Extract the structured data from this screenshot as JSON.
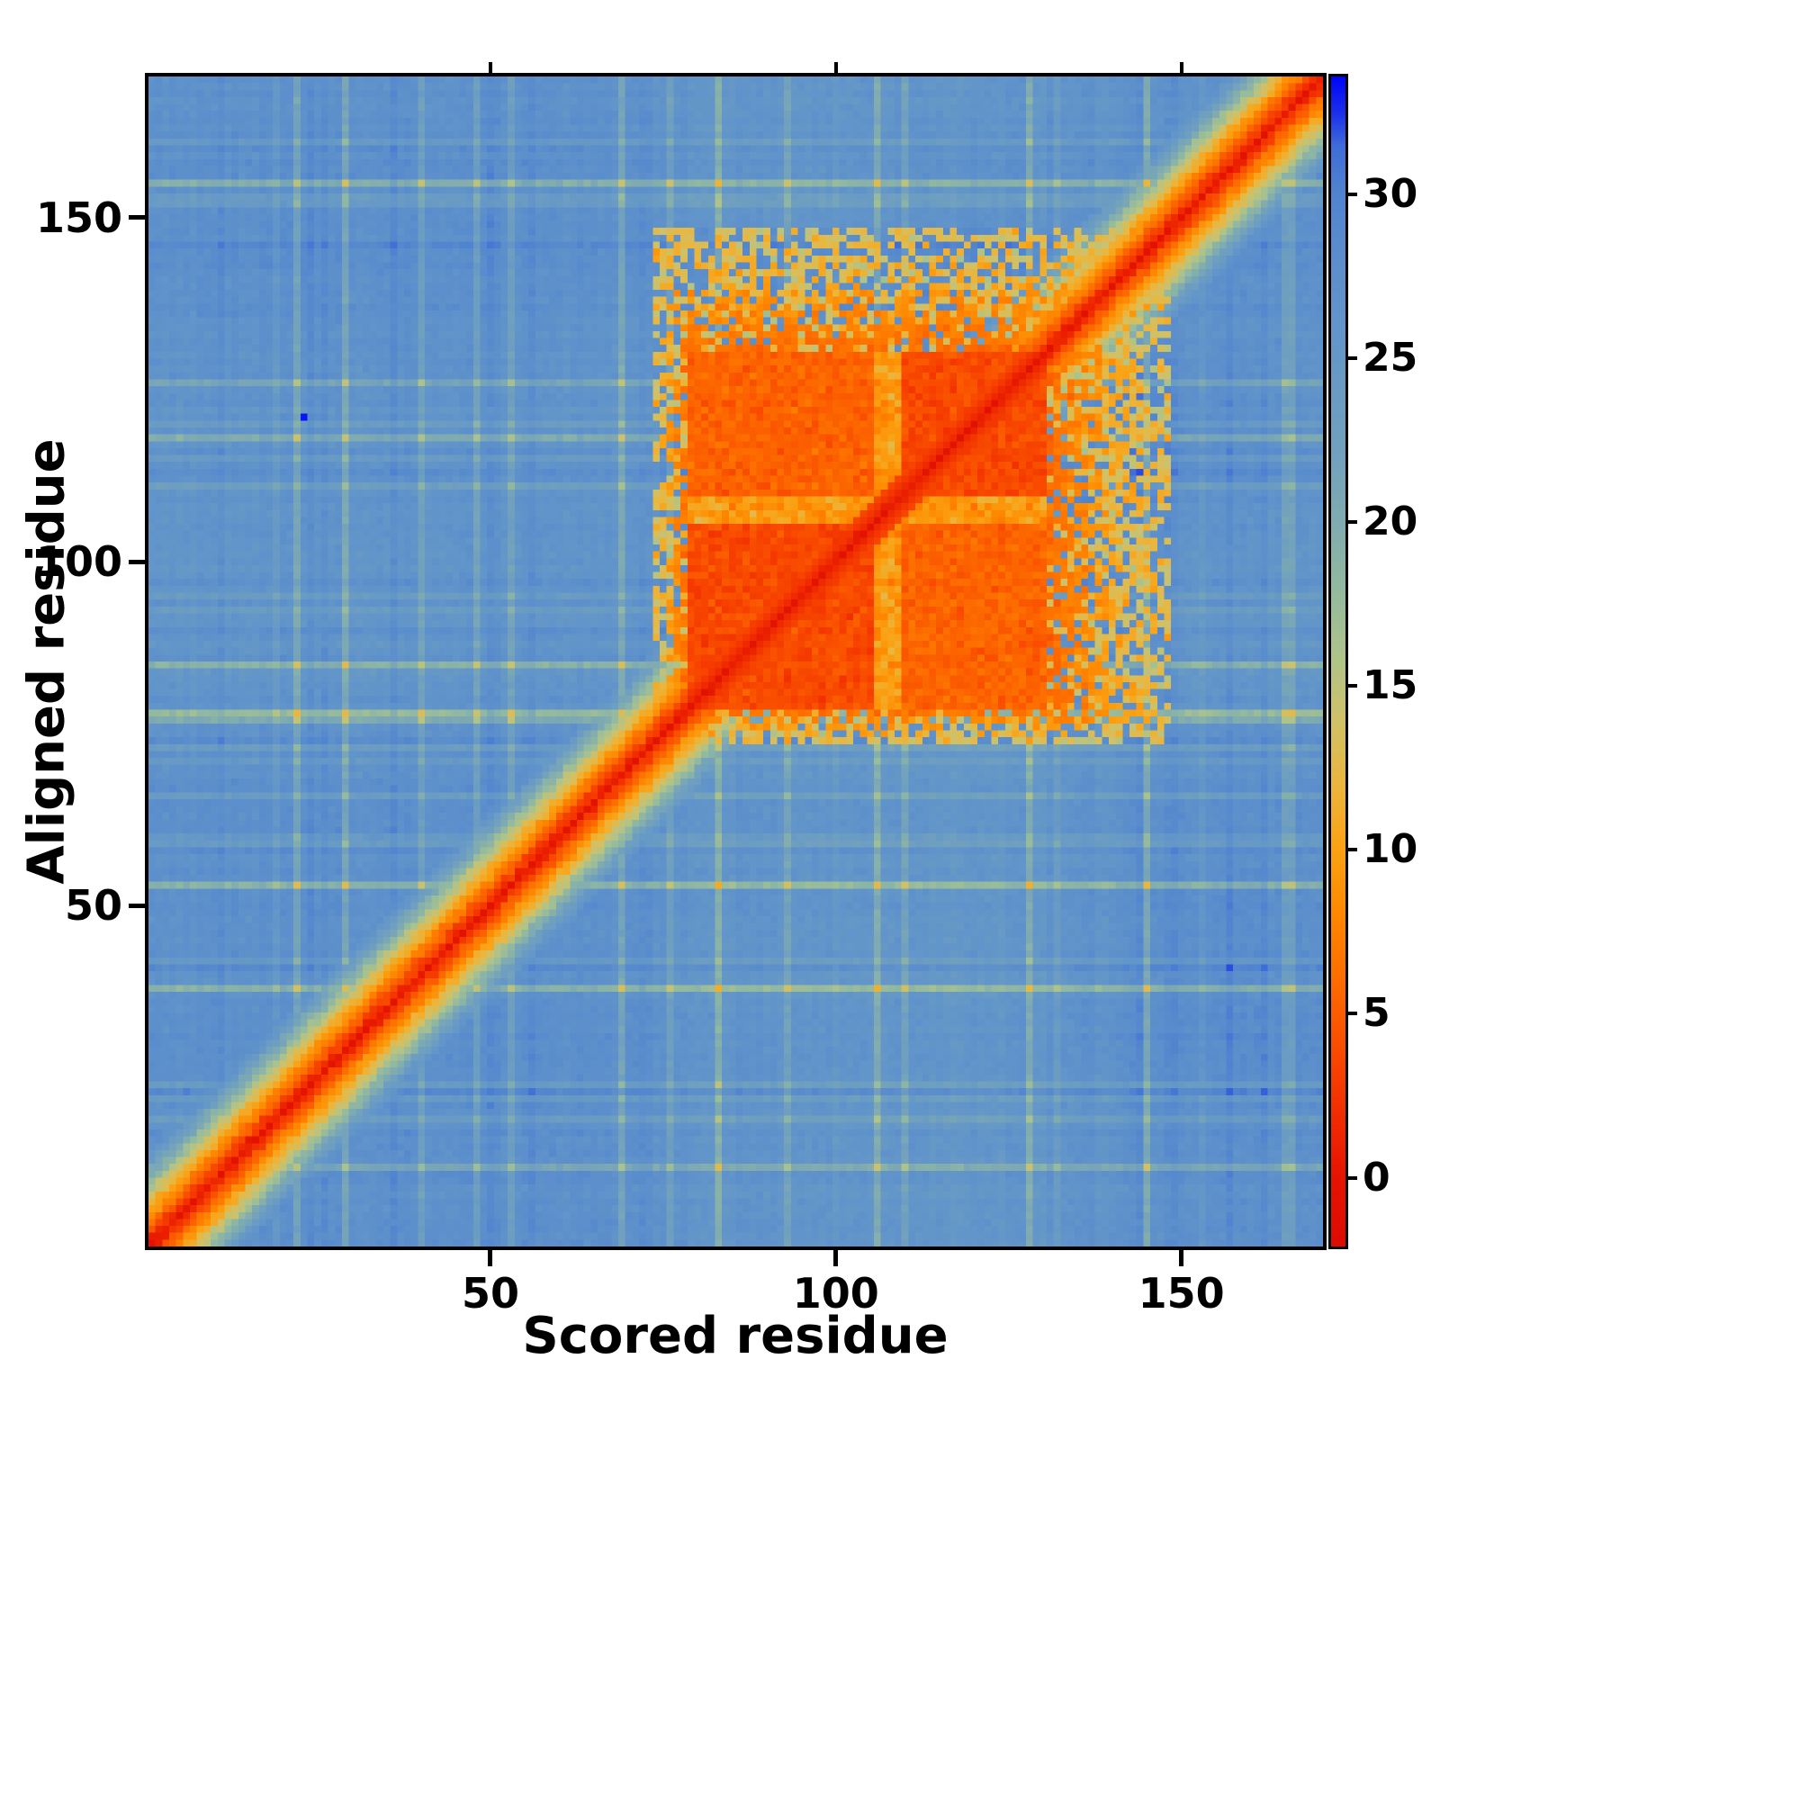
{
  "chart_data": {
    "type": "heatmap",
    "xlabel": "Scored residue",
    "ylabel": "Aligned residue",
    "x_range": [
      1,
      170
    ],
    "y_range": [
      1,
      170
    ],
    "x_ticks": [
      50,
      100,
      150
    ],
    "y_ticks": [
      50,
      100,
      150
    ],
    "grid": false,
    "legend": "colorbar-right",
    "colorbar": {
      "position": "right",
      "ticks": [
        0,
        5,
        10,
        15,
        20,
        25,
        30
      ],
      "vmin": -2.1,
      "vmax": 33.6,
      "colormap": [
        [
          -2.1,
          "#dd0b00"
        ],
        [
          0,
          "#e51400"
        ],
        [
          2,
          "#f22e00"
        ],
        [
          4,
          "#f94d00"
        ],
        [
          6,
          "#fd6c00"
        ],
        [
          8,
          "#fe8700"
        ],
        [
          10,
          "#fba113"
        ],
        [
          12,
          "#eab63e"
        ],
        [
          14,
          "#cfc169"
        ],
        [
          16,
          "#adc38b"
        ],
        [
          18,
          "#92b9a0"
        ],
        [
          20,
          "#80abb0"
        ],
        [
          22,
          "#72a1bd"
        ],
        [
          24,
          "#699bc4"
        ],
        [
          26,
          "#6295c9"
        ],
        [
          28,
          "#5b8ecb"
        ],
        [
          30,
          "#5184cf"
        ],
        [
          31.5,
          "#3e6cd8"
        ],
        [
          32.5,
          "#1c2fe9"
        ],
        [
          33.6,
          "#0006fa"
        ]
      ]
    },
    "matrix_model": {
      "size": 170,
      "seed": 1337,
      "background": 27.5,
      "diagonal": {
        "value_per_residue": 2.0
      },
      "block": {
        "core_start": 79,
        "core_end": 130,
        "ext_end": 149,
        "fringe": 5,
        "core_value": 3.8,
        "seam": [
          106,
          109
        ]
      },
      "outlier": {
        "x": 23,
        "y": 121,
        "value": 33.2
      },
      "blue_blobs": [
        {
          "x": 150,
          "y": 120,
          "sx": 16,
          "sy": 11,
          "amp": 1.6
        },
        {
          "x": 120,
          "y": 150,
          "sx": 11,
          "sy": 16,
          "amp": 1.1
        },
        {
          "x": 30,
          "y": 128,
          "sx": 22,
          "sy": 16,
          "amp": 0.7
        },
        {
          "x": 156,
          "y": 38,
          "sx": 14,
          "sy": 14,
          "amp": 0.9
        }
      ]
    }
  }
}
